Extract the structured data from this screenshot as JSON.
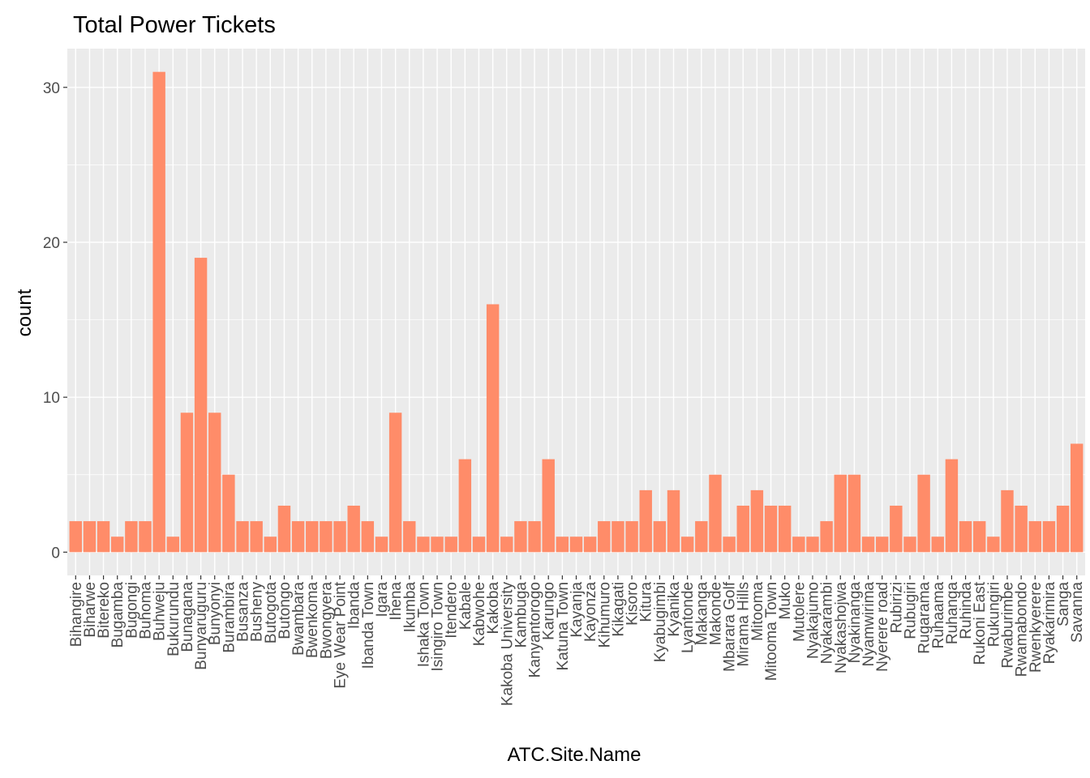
{
  "colors": {
    "panel_background": "#ebebeb",
    "grid_major": "#ffffff",
    "bar_fill": "#ff8c69",
    "tick_text": "#4d4d4d",
    "tick_mark": "#333333"
  },
  "chart_data": {
    "type": "bar",
    "title": "Total Power Tickets",
    "xlabel": "ATC.Site.Name",
    "ylabel": "count",
    "ylim": [
      -1.5,
      32.5
    ],
    "yticks": [
      0,
      10,
      20,
      30
    ],
    "grid": true,
    "categories": [
      "Bihangire",
      "Biharwe",
      "Bitereko",
      "Bugamba",
      "Bugongi",
      "Buhoma",
      "Buhweju",
      "Bukurundu",
      "Bunagana",
      "Bunyaruguru",
      "Bunyonyi",
      "Burambira",
      "Busanza",
      "Busheny",
      "Butogota",
      "Butongo",
      "Bwambara",
      "Bwenkoma",
      "Bwongyera",
      "Eye Wear Point",
      "Ibanda",
      "Ibanda Town",
      "Igara",
      "Ihena",
      "Ikumba",
      "Ishaka Town",
      "Isingiro Town",
      "Itendero",
      "Kabale",
      "Kabwohe",
      "Kakoba",
      "Kakoba University",
      "Kambuga",
      "Kanyantorogo",
      "Karungo",
      "Katuna Town",
      "Kayanja",
      "Kayonza",
      "Kihumuro",
      "Kikagati",
      "Kisoro",
      "Kitura",
      "Kyabugimbi",
      "Kyanika",
      "Lyantonde",
      "Makanga",
      "Makonde",
      "Mbarara Golf",
      "Mirama Hills",
      "Mitooma",
      "Mitooma Town",
      "Muko",
      "Mutolere",
      "Nyakajumo",
      "Nyakarambi",
      "Nyakashojwa",
      "Nyakinanga",
      "Nyamwirima",
      "Nyerere road",
      "Rubirizi",
      "Rubugiri",
      "Rugarama",
      "Ruhaama",
      "Ruhanga",
      "Ruhinda",
      "Rukoni East",
      "Rukungiri",
      "Rwaburimbe",
      "Rwamabondo",
      "Rwenkyerere",
      "Ryakarimira",
      "Sanga",
      "Savanna"
    ],
    "values": [
      2,
      2,
      2,
      1,
      2,
      2,
      31,
      1,
      9,
      19,
      9,
      5,
      2,
      2,
      1,
      3,
      2,
      2,
      2,
      2,
      3,
      2,
      1,
      9,
      2,
      1,
      1,
      1,
      6,
      1,
      16,
      1,
      2,
      2,
      6,
      1,
      1,
      1,
      2,
      2,
      2,
      4,
      2,
      4,
      1,
      2,
      5,
      1,
      3,
      4,
      3,
      3,
      1,
      1,
      2,
      5,
      5,
      1,
      1,
      3,
      1,
      5,
      1,
      6,
      2,
      2,
      1,
      4,
      3,
      2,
      2,
      3,
      7
    ]
  }
}
